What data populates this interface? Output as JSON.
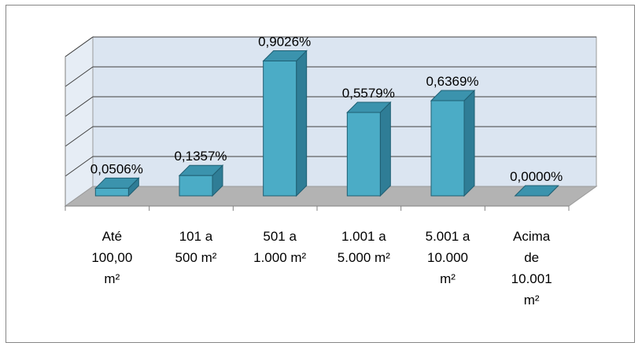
{
  "chart_data": {
    "type": "bar",
    "title": "",
    "xlabel": "",
    "ylabel": "",
    "categories": [
      "Até\n100,00\nm²",
      "101 a\n500 m²",
      "501 a\n1.000 m²",
      "1.001 a\n5.000 m²",
      "5.001 a\n10.000\nm²",
      "Acima\nde\n10.001\nm²"
    ],
    "values": [
      0.0506,
      0.1357,
      0.9026,
      0.5579,
      0.6369,
      0.0
    ],
    "data_labels": [
      "0,0506%",
      "0,1357%",
      "0,9026%",
      "0,5579%",
      "0,6369%",
      "0,0000%"
    ],
    "ylim": [
      0,
      1.0
    ],
    "grid": true,
    "legend": "none",
    "style": "3d-column",
    "colors": {
      "bar_front": "#4bacc6",
      "bar_side": "#2f7d96",
      "bar_top": "#3b93ad",
      "floor": "#b3b3b3",
      "wall": "#dbe5f1",
      "grid": "#404040"
    }
  }
}
